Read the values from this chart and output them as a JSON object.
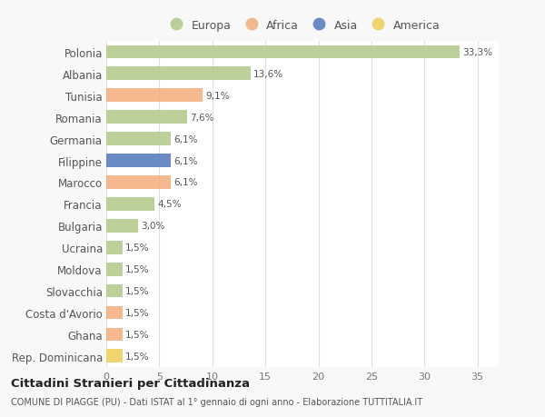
{
  "categories": [
    "Polonia",
    "Albania",
    "Tunisia",
    "Romania",
    "Germania",
    "Filippine",
    "Marocco",
    "Francia",
    "Bulgaria",
    "Ucraina",
    "Moldova",
    "Slovacchia",
    "Costa d'Avorio",
    "Ghana",
    "Rep. Dominicana"
  ],
  "values": [
    33.3,
    13.6,
    9.1,
    7.6,
    6.1,
    6.1,
    6.1,
    4.5,
    3.0,
    1.5,
    1.5,
    1.5,
    1.5,
    1.5,
    1.5
  ],
  "labels": [
    "33,3%",
    "13,6%",
    "9,1%",
    "7,6%",
    "6,1%",
    "6,1%",
    "6,1%",
    "4,5%",
    "3,0%",
    "1,5%",
    "1,5%",
    "1,5%",
    "1,5%",
    "1,5%",
    "1,5%"
  ],
  "continents": [
    "Europa",
    "Europa",
    "Africa",
    "Europa",
    "Europa",
    "Asia",
    "Africa",
    "Europa",
    "Europa",
    "Europa",
    "Europa",
    "Europa",
    "Africa",
    "Africa",
    "America"
  ],
  "colors": {
    "Europa": "#b5cc8e",
    "Africa": "#f4b183",
    "Asia": "#5b7fc0",
    "America": "#f0d060"
  },
  "legend_order": [
    "Europa",
    "Africa",
    "Asia",
    "America"
  ],
  "title": "Cittadini Stranieri per Cittadinanza",
  "subtitle": "COMUNE DI PIAGGE (PU) - Dati ISTAT al 1° gennaio di ogni anno - Elaborazione TUTTITALIA.IT",
  "xlim": [
    0,
    37
  ],
  "xticks": [
    0,
    5,
    10,
    15,
    20,
    25,
    30,
    35
  ],
  "bg_color": "#f8f8f8",
  "plot_bg_color": "#ffffff",
  "grid_color": "#e0e0e0"
}
